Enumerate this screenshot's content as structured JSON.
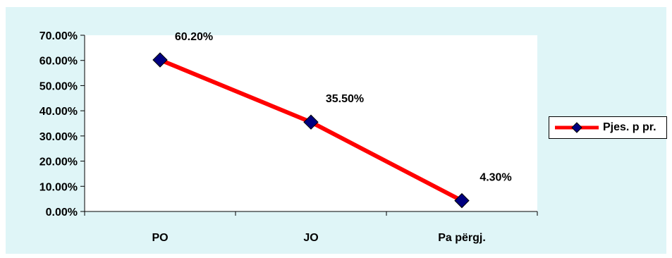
{
  "colors": {
    "series": "#ff0000",
    "marker": "#000080",
    "background": "#dff5f7",
    "plot": "#ffffff"
  },
  "chart_data": {
    "type": "line",
    "categories": [
      "PO",
      "JO",
      "Pa përgj."
    ],
    "series": [
      {
        "name": "Pjes. p pr.",
        "values": [
          0.602,
          0.355,
          0.043
        ]
      }
    ],
    "data_labels": [
      "60.20%",
      "35.50%",
      "4.30%"
    ],
    "y_ticks": [
      "0.00%",
      "10.00%",
      "20.00%",
      "30.00%",
      "40.00%",
      "50.00%",
      "60.00%",
      "70.00%"
    ],
    "ylim": [
      0,
      0.7
    ],
    "grid": false,
    "legend": "right",
    "marker": "diamond"
  }
}
